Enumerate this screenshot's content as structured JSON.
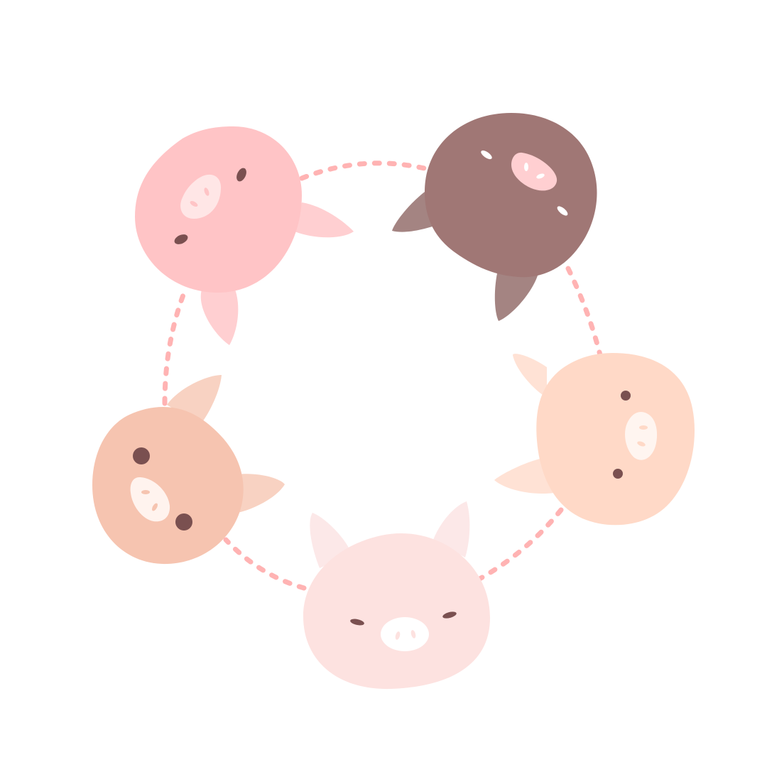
{
  "illustration": {
    "subject": "five-pig-heads-circle",
    "pig_count": 5,
    "colors": {
      "background": "#ffffff",
      "dotted_ring": "#ffb3b3",
      "eye": "#7a5050",
      "pig_pink": "#ffc4c6",
      "pig_brown": "#a07775",
      "pig_peach_right": "#ffd9c7",
      "pig_peach_left": "#f6c4b0",
      "pig_light_bottom": "#fde2e0"
    },
    "icons": [
      "pig-head-icon",
      "dotted-ring-icon"
    ]
  }
}
